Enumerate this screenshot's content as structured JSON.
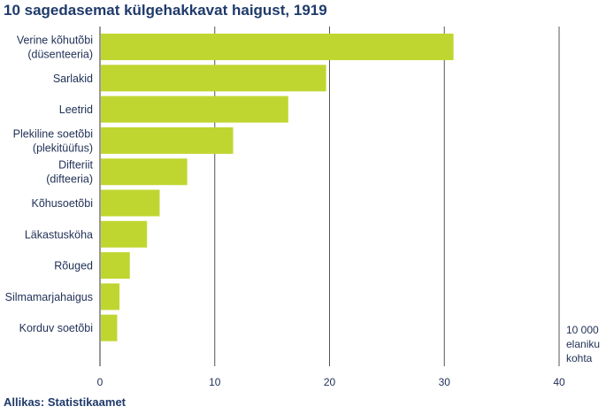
{
  "title": "10 sagedasemat külgehakkavat haigust, 1919",
  "source": "Allikas: Statistikaamet",
  "chart_data": {
    "type": "bar",
    "orientation": "horizontal",
    "title": "10 sagedasemat külgehakkavat haigust, 1919",
    "categories": [
      [
        "Verine kõhutõbi",
        "(düsenteeria)"
      ],
      [
        "Sarlakid"
      ],
      [
        "Leetrid"
      ],
      [
        "Plekiline soetõbi",
        "(plekitüüfus)"
      ],
      [
        "Difteriit",
        "(difteeria)"
      ],
      [
        "Kõhusoetõbi"
      ],
      [
        "Läkastusköha"
      ],
      [
        "Rõuged"
      ],
      [
        "Silmamarjahaigus"
      ],
      [
        "Korduv soetõbi"
      ]
    ],
    "values": [
      30.8,
      19.7,
      16.4,
      11.6,
      7.6,
      5.2,
      4.1,
      2.6,
      1.7,
      1.5
    ],
    "xlim": [
      0,
      40
    ],
    "ticks": [
      0,
      10,
      20,
      30,
      40
    ],
    "unit_label": [
      "10 000",
      "elaniku",
      "kohta"
    ],
    "grid": true,
    "bar_color": "#c0d630",
    "grid_color": "#555555"
  }
}
